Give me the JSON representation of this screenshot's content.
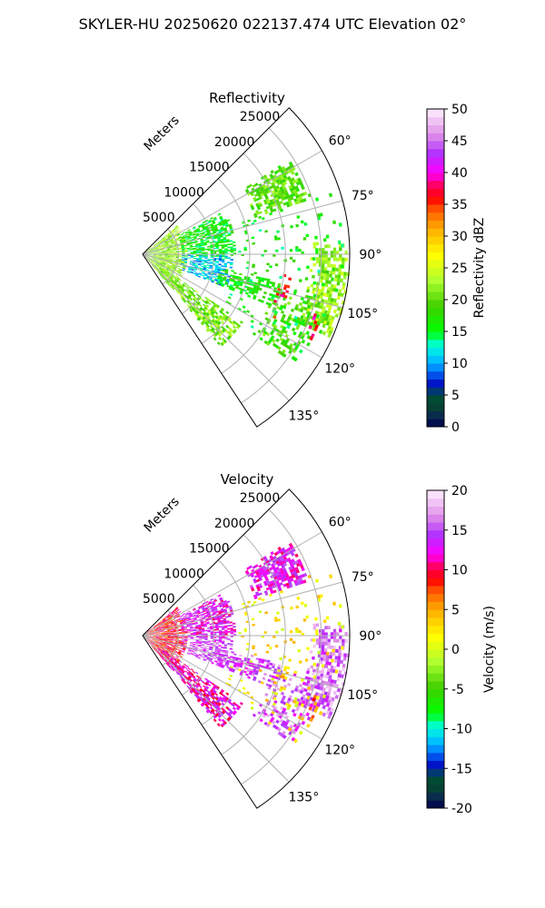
{
  "figure_title": "SKYLER-HU  20250620  022137.474 UTC Elevation 02°",
  "chart_data": [
    {
      "type": "heatmap",
      "projection": "polar-sector",
      "title": "Reflectivity",
      "range_label": "Meters",
      "range_ticks": [
        "5000",
        "10000",
        "15000",
        "20000",
        "25000"
      ],
      "range_tick_values": [
        5000,
        10000,
        15000,
        20000,
        25000
      ],
      "range_max": 29000,
      "azimuth_range": [
        45,
        146.5
      ],
      "azimuth_ticks": [
        "60°",
        "75°",
        "90°",
        "105°",
        "120°",
        "135°"
      ],
      "azimuth_tick_values": [
        60,
        75,
        90,
        105,
        120,
        135
      ],
      "grid": true,
      "colorbar": {
        "label": "Reflectivity dBZ",
        "vmin": 0,
        "vmax": 50,
        "ticks": [
          "0",
          "5",
          "10",
          "15",
          "20",
          "25",
          "30",
          "35",
          "40",
          "45",
          "50"
        ],
        "tick_values": [
          0,
          5,
          10,
          15,
          20,
          25,
          30,
          35,
          40,
          45,
          50
        ]
      },
      "echo_regions": [
        {
          "az": [
            50,
            140
          ],
          "range": [
            300,
            6000
          ],
          "value": 22,
          "density": 0.75
        },
        {
          "az": [
            62,
            92
          ],
          "range": [
            5500,
            13000
          ],
          "value": 16,
          "density": 0.7
        },
        {
          "az": [
            90,
            112
          ],
          "range": [
            5500,
            12500
          ],
          "value": 11,
          "density": 0.6
        },
        {
          "az": [
            124,
            140
          ],
          "range": [
            3000,
            17000
          ],
          "value": 21,
          "density": 0.7
        },
        {
          "az": [
            100,
            112
          ],
          "range": [
            11000,
            20000
          ],
          "value": 17,
          "density": 0.55
        },
        {
          "az": [
            57,
            72
          ],
          "range": [
            16500,
            24500
          ],
          "value": 20,
          "density": 0.75
        },
        {
          "az": [
            86,
            114
          ],
          "range": [
            23500,
            29000
          ],
          "value": 22,
          "density": 0.7
        },
        {
          "az": [
            104,
            126
          ],
          "range": [
            19000,
            26000
          ],
          "value": 19,
          "density": 0.4
        },
        {
          "az": [
            70,
            125
          ],
          "range": [
            13000,
            28000
          ],
          "value": 16,
          "density": 0.06
        },
        {
          "az": [
            98,
            116
          ],
          "range": [
            19500,
            21000
          ],
          "value": 37,
          "density": 0.35
        },
        {
          "az": [
            108,
            118
          ],
          "range": [
            25000,
            26500
          ],
          "value": 37,
          "density": 0.35
        }
      ]
    },
    {
      "type": "heatmap",
      "projection": "polar-sector",
      "title": "Velocity",
      "range_label": "Meters",
      "range_ticks": [
        "5000",
        "10000",
        "15000",
        "20000",
        "25000"
      ],
      "range_tick_values": [
        5000,
        10000,
        15000,
        20000,
        25000
      ],
      "range_max": 29000,
      "azimuth_range": [
        45,
        146.5
      ],
      "azimuth_ticks": [
        "60°",
        "75°",
        "90°",
        "105°",
        "120°",
        "135°"
      ],
      "azimuth_tick_values": [
        60,
        75,
        90,
        105,
        120,
        135
      ],
      "grid": true,
      "colorbar": {
        "label": "Velocity (m/s)",
        "vmin": -20,
        "vmax": 20,
        "ticks": [
          "-20",
          "-15",
          "-10",
          "-5",
          "0",
          "5",
          "10",
          "15",
          "20"
        ],
        "tick_values": [
          -20,
          -15,
          -10,
          -5,
          0,
          5,
          10,
          15,
          20
        ]
      },
      "echo_regions": [
        {
          "az": [
            50,
            140
          ],
          "range": [
            300,
            6000
          ],
          "value": 9,
          "density": 0.75
        },
        {
          "az": [
            62,
            92
          ],
          "range": [
            5500,
            13000
          ],
          "value": 13,
          "density": 0.7
        },
        {
          "az": [
            90,
            112
          ],
          "range": [
            5500,
            12500
          ],
          "value": 15,
          "density": 0.6
        },
        {
          "az": [
            124,
            140
          ],
          "range": [
            3000,
            17000
          ],
          "value": 12,
          "density": 0.7
        },
        {
          "az": [
            100,
            112
          ],
          "range": [
            11000,
            20000
          ],
          "value": 15,
          "density": 0.55
        },
        {
          "az": [
            57,
            72
          ],
          "range": [
            16500,
            24500
          ],
          "value": 13,
          "density": 0.75
        },
        {
          "az": [
            86,
            114
          ],
          "range": [
            23500,
            29000
          ],
          "value": 16,
          "density": 0.7
        },
        {
          "az": [
            104,
            126
          ],
          "range": [
            19000,
            26000
          ],
          "value": 15,
          "density": 0.4
        },
        {
          "az": [
            70,
            125
          ],
          "range": [
            13000,
            28000
          ],
          "value": 2,
          "density": 0.06
        },
        {
          "az": [
            98,
            116
          ],
          "range": [
            19500,
            21000
          ],
          "value": 4,
          "density": 0.35
        },
        {
          "az": [
            108,
            118
          ],
          "range": [
            25000,
            26500
          ],
          "value": 6,
          "density": 0.35
        }
      ]
    }
  ],
  "colormap": [
    [
      0.0,
      "#00004c"
    ],
    [
      0.04,
      "#0b2f4c"
    ],
    [
      0.08,
      "#005020"
    ],
    [
      0.11,
      "#003c6c"
    ],
    [
      0.14,
      "#0010d0"
    ],
    [
      0.18,
      "#0080ff"
    ],
    [
      0.22,
      "#00d0ff"
    ],
    [
      0.26,
      "#00ffd0"
    ],
    [
      0.3,
      "#00ff00"
    ],
    [
      0.38,
      "#40d000"
    ],
    [
      0.46,
      "#b0ff30"
    ],
    [
      0.54,
      "#ffff00"
    ],
    [
      0.62,
      "#ffb000"
    ],
    [
      0.68,
      "#ff6000"
    ],
    [
      0.72,
      "#ff0000"
    ],
    [
      0.76,
      "#ff0060"
    ],
    [
      0.8,
      "#ff00ff"
    ],
    [
      0.86,
      "#b030ff"
    ],
    [
      0.92,
      "#e090e8"
    ],
    [
      1.0,
      "#fff0ff"
    ]
  ]
}
